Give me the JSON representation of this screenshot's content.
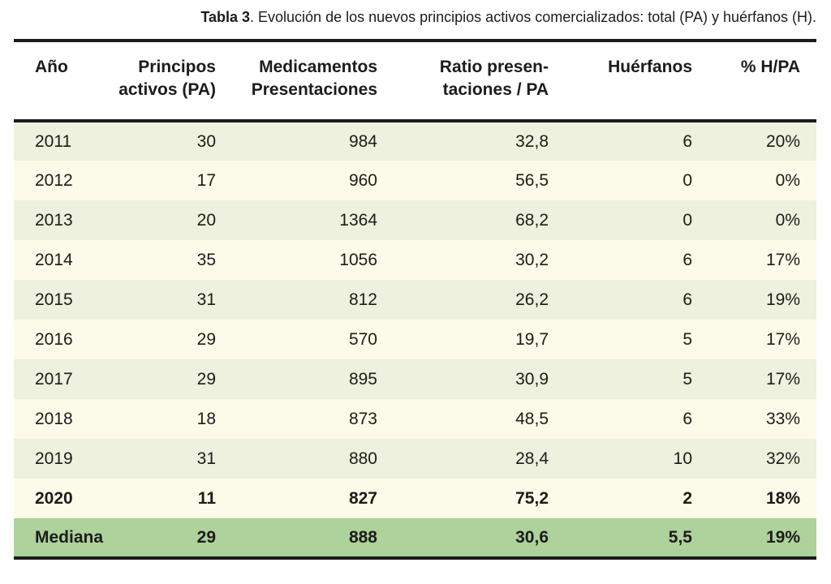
{
  "caption": {
    "number": "Tabla 3",
    "text": ". Evolución de los nuevos principios activos comercializados: total (PA) y huérfanos (H)."
  },
  "table": {
    "columns": [
      "Año",
      "Principos\nactivos (PA)",
      "Medicamentos\nPresentaciones",
      "Ratio presen-\ntaciones / PA",
      "Huérfanos",
      "% H/PA"
    ],
    "rows": [
      {
        "ano": "2011",
        "pa": "30",
        "presentaciones": "984",
        "ratio": "32,8",
        "huerfanos": "6",
        "pct": "20%",
        "bold": false
      },
      {
        "ano": "2012",
        "pa": "17",
        "presentaciones": "960",
        "ratio": "56,5",
        "huerfanos": "0",
        "pct": "0%",
        "bold": false
      },
      {
        "ano": "2013",
        "pa": "20",
        "presentaciones": "1364",
        "ratio": "68,2",
        "huerfanos": "0",
        "pct": "0%",
        "bold": false
      },
      {
        "ano": "2014",
        "pa": "35",
        "presentaciones": "1056",
        "ratio": "30,2",
        "huerfanos": "6",
        "pct": "17%",
        "bold": false
      },
      {
        "ano": "2015",
        "pa": "31",
        "presentaciones": "812",
        "ratio": "26,2",
        "huerfanos": "6",
        "pct": "19%",
        "bold": false
      },
      {
        "ano": "2016",
        "pa": "29",
        "presentaciones": "570",
        "ratio": "19,7",
        "huerfanos": "5",
        "pct": "17%",
        "bold": false
      },
      {
        "ano": "2017",
        "pa": "29",
        "presentaciones": "895",
        "ratio": "30,9",
        "huerfanos": "5",
        "pct": "17%",
        "bold": false
      },
      {
        "ano": "2018",
        "pa": "18",
        "presentaciones": "873",
        "ratio": "48,5",
        "huerfanos": "6",
        "pct": "33%",
        "bold": false
      },
      {
        "ano": "2019",
        "pa": "31",
        "presentaciones": "880",
        "ratio": "28,4",
        "huerfanos": "10",
        "pct": "32%",
        "bold": false
      },
      {
        "ano": "2020",
        "pa": "11",
        "presentaciones": "827",
        "ratio": "75,2",
        "huerfanos": "2",
        "pct": "18%",
        "bold": true
      },
      {
        "ano": "Mediana",
        "pa": "29",
        "presentaciones": "888",
        "ratio": "30,6",
        "huerfanos": "5,5",
        "pct": "19%",
        "bold": true
      }
    ],
    "median_row_label": "Mediana"
  },
  "colors": {
    "rule_black": "#1b1b19",
    "row_green": "#edf1dd",
    "row_cream": "#fcfae9",
    "median_green": "#aed29c",
    "text_ink": "#1c1c1a"
  }
}
